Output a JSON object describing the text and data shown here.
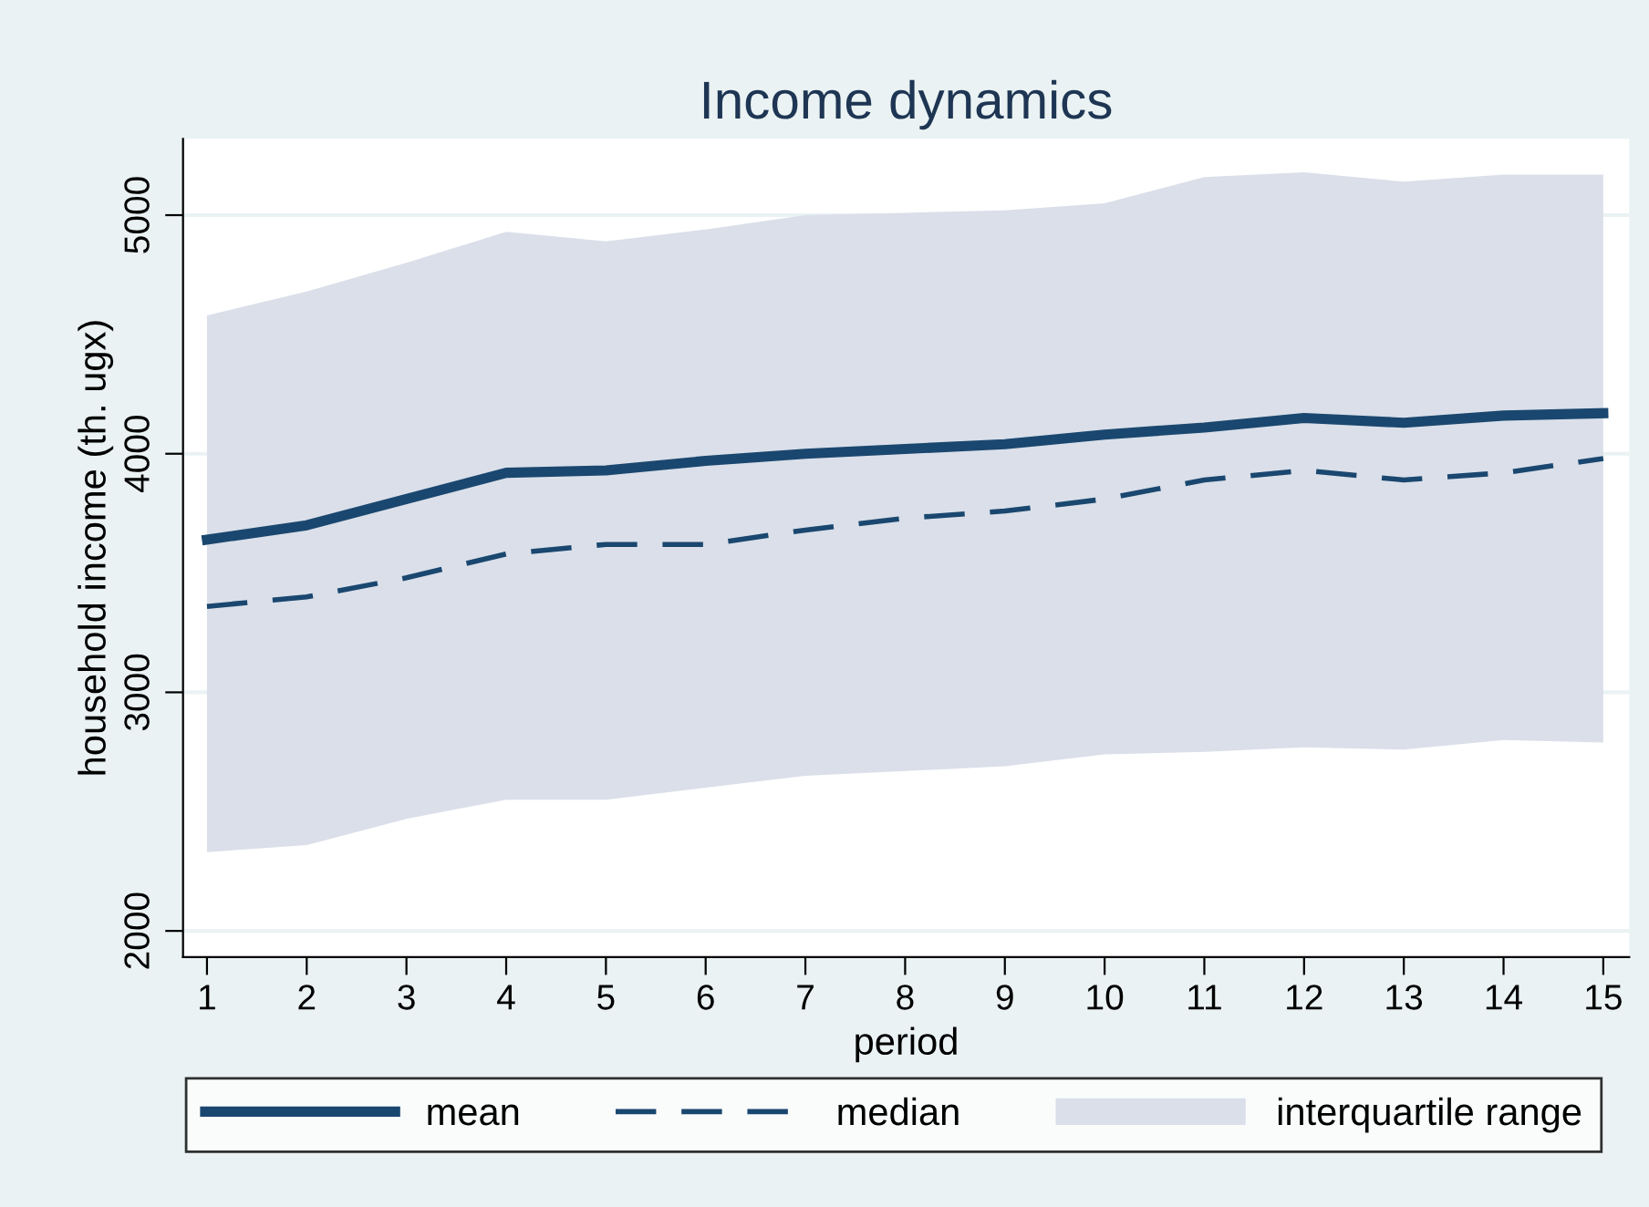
{
  "chart_data": {
    "type": "line",
    "title": "Income dynamics",
    "xlabel": "period",
    "ylabel": "household income (th. ugx)",
    "x": [
      1,
      2,
      3,
      4,
      5,
      6,
      7,
      8,
      9,
      10,
      11,
      12,
      13,
      14,
      15
    ],
    "xlim": [
      0.76,
      15.26
    ],
    "xticks": [
      1,
      2,
      3,
      4,
      5,
      6,
      7,
      8,
      9,
      10,
      11,
      12,
      13,
      14,
      15
    ],
    "ylim": [
      1890,
      5320
    ],
    "yticks": [
      2000,
      3000,
      4000,
      5000
    ],
    "grid": "y",
    "legend": "bottom",
    "series": [
      {
        "name": "mean",
        "color": "#1a476f",
        "line_style": "solid",
        "values": [
          3640,
          3700,
          3810,
          3920,
          3930,
          3970,
          4000,
          4020,
          4040,
          4080,
          4110,
          4150,
          4130,
          4160,
          4170
        ]
      },
      {
        "name": "median",
        "color": "#1a476f",
        "line_style": "dashed",
        "values": [
          3360,
          3400,
          3480,
          3580,
          3620,
          3620,
          3680,
          3730,
          3760,
          3810,
          3890,
          3930,
          3890,
          3920,
          3980
        ]
      },
      {
        "name": "interquartile range",
        "type": "area",
        "color": "#dadfe9",
        "values": [
          null,
          null,
          null,
          null,
          null,
          null,
          null,
          null,
          null,
          null,
          null,
          null,
          null,
          null,
          null
        ],
        "lower": [
          2330,
          2360,
          2470,
          2550,
          2550,
          2600,
          2650,
          2670,
          2690,
          2740,
          2750,
          2770,
          2760,
          2800,
          2790
        ],
        "upper": [
          4580,
          4680,
          4800,
          4930,
          4890,
          4940,
          5000,
          5010,
          5020,
          5050,
          5160,
          5180,
          5140,
          5170,
          5170
        ]
      }
    ]
  }
}
